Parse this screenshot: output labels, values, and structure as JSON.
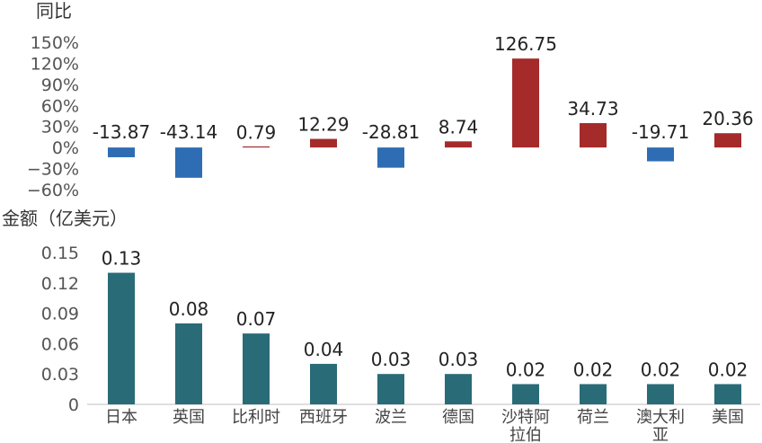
{
  "chart_data": [
    {
      "type": "bar",
      "ylabel": "同比",
      "categories": [
        "日本",
        "英国",
        "比利时",
        "西班牙",
        "波兰",
        "德国",
        "沙特阿拉伯",
        "荷兰",
        "澳大利亚",
        "美国"
      ],
      "values": [
        -13.87,
        -43.14,
        0.79,
        12.29,
        -28.81,
        8.74,
        126.75,
        34.73,
        -19.71,
        20.36
      ],
      "data_labels": [
        "-13.87",
        "-43.14",
        "0.79",
        "12.29",
        "-28.81",
        "8.74",
        "126.75",
        "34.73",
        "-19.71",
        "20.36"
      ],
      "yticks": [
        "150%",
        "120%",
        "90%",
        "60%",
        "30%",
        "0%",
        "−30%",
        "−60%"
      ],
      "ylim": [
        -60,
        150
      ],
      "colors": {
        "positive": "#a52a2a",
        "negative": "#2e6db4"
      }
    },
    {
      "type": "bar",
      "ylabel": "金额（亿美元）",
      "categories": [
        "日本",
        "英国",
        "比利时",
        "西班牙",
        "波兰",
        "德国",
        "沙特阿拉伯",
        "荷兰",
        "澳大利亚",
        "美国"
      ],
      "category_lines": [
        [
          "日本"
        ],
        [
          "英国"
        ],
        [
          "比利时"
        ],
        [
          "西班牙"
        ],
        [
          "波兰"
        ],
        [
          "德国"
        ],
        [
          "沙特阿",
          "拉伯"
        ],
        [
          "荷兰"
        ],
        [
          "澳大利",
          "亚"
        ],
        [
          "美国"
        ]
      ],
      "values": [
        0.13,
        0.08,
        0.07,
        0.04,
        0.03,
        0.03,
        0.02,
        0.02,
        0.02,
        0.02
      ],
      "data_labels": [
        "0.13",
        "0.08",
        "0.07",
        "0.04",
        "0.03",
        "0.03",
        "0.02",
        "0.02",
        "0.02",
        "0.02"
      ],
      "yticks": [
        "0.15",
        "0.12",
        "0.09",
        "0.06",
        "0.03",
        "0"
      ],
      "ylim": [
        0,
        0.15
      ],
      "colors": {
        "bar": "#2a6b78"
      }
    }
  ]
}
